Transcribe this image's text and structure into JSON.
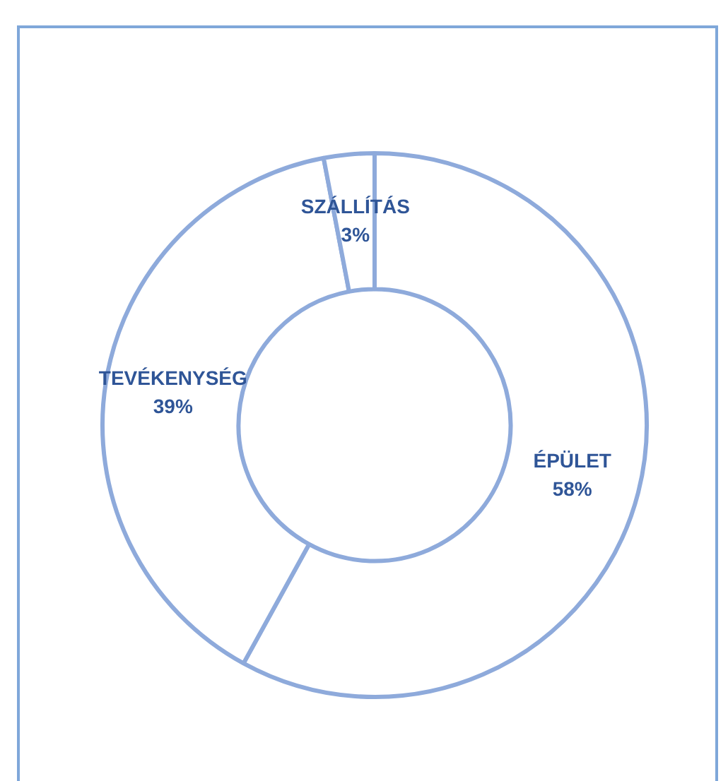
{
  "chart_data": {
    "type": "donut",
    "categories": [
      "ÉPÜLET",
      "TEVÉKENYSÉG",
      "SZÁLLÍTÁS"
    ],
    "values": [
      58,
      39,
      3
    ],
    "colors": [
      "#8eaadb",
      "#8eaadb",
      "#8eaadb"
    ],
    "value_labels": [
      "58%",
      "39%",
      "3%"
    ],
    "legend": false
  }
}
